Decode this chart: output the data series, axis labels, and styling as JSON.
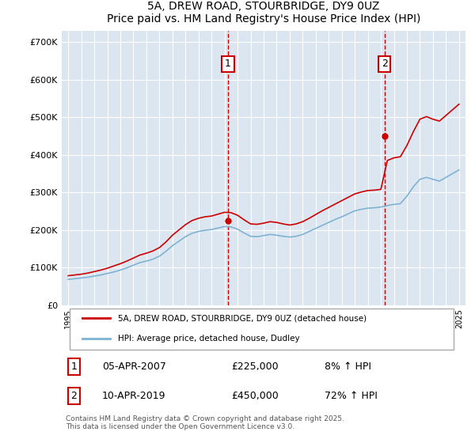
{
  "title": "5A, DREW ROAD, STOURBRIDGE, DY9 0UZ",
  "subtitle": "Price paid vs. HM Land Registry's House Price Index (HPI)",
  "ylabel": "",
  "ylim": [
    0,
    730000
  ],
  "yticks": [
    0,
    100000,
    200000,
    300000,
    400000,
    500000,
    600000,
    700000
  ],
  "ytick_labels": [
    "£0",
    "£100K",
    "£200K",
    "£300K",
    "£400K",
    "£500K",
    "£600K",
    "£700K"
  ],
  "xlim_start": 1994.5,
  "xlim_end": 2025.5,
  "background_color": "#dce6f1",
  "plot_bg_color": "#dce6f1",
  "grid_color": "#ffffff",
  "line1_color": "#cc0000",
  "line2_color": "#7fb3d3",
  "marker_color": "#cc0000",
  "vline_color": "#cc0000",
  "annotation_box_color": "#cc0000",
  "legend_line1": "5A, DREW ROAD, STOURBRIDGE, DY9 0UZ (detached house)",
  "legend_line2": "HPI: Average price, detached house, Dudley",
  "purchase1_date": "05-APR-2007",
  "purchase1_price": "£225,000",
  "purchase1_hpi": "8% ↑ HPI",
  "purchase1_x": 2007.27,
  "purchase1_y": 225000,
  "purchase2_date": "10-APR-2019",
  "purchase2_price": "£450,000",
  "purchase2_hpi": "72% ↑ HPI",
  "purchase2_x": 2019.28,
  "purchase2_y": 450000,
  "footer": "Contains HM Land Registry data © Crown copyright and database right 2025.\nThis data is licensed under the Open Government Licence v3.0.",
  "hpi_line_data_x": [
    1995,
    1995.5,
    1996,
    1996.5,
    1997,
    1997.5,
    1998,
    1998.5,
    1999,
    1999.5,
    2000,
    2000.5,
    2001,
    2001.5,
    2002,
    2002.5,
    2003,
    2003.5,
    2004,
    2004.5,
    2005,
    2005.5,
    2006,
    2006.5,
    2007,
    2007.5,
    2008,
    2008.5,
    2009,
    2009.5,
    2010,
    2010.5,
    2011,
    2011.5,
    2012,
    2012.5,
    2013,
    2013.5,
    2014,
    2014.5,
    2015,
    2015.5,
    2016,
    2016.5,
    2017,
    2017.5,
    2018,
    2018.5,
    2019,
    2019.5,
    2020,
    2020.5,
    2021,
    2021.5,
    2022,
    2022.5,
    2023,
    2023.5,
    2024,
    2024.5,
    2025
  ],
  "hpi_line_data_y": [
    68000,
    70000,
    72000,
    74000,
    77000,
    80000,
    84000,
    88000,
    93000,
    99000,
    106000,
    113000,
    117000,
    122000,
    130000,
    143000,
    158000,
    170000,
    182000,
    191000,
    196000,
    199000,
    201000,
    205000,
    209000,
    208000,
    202000,
    192000,
    183000,
    182000,
    185000,
    188000,
    186000,
    183000,
    181000,
    183000,
    188000,
    196000,
    204000,
    212000,
    220000,
    228000,
    235000,
    243000,
    251000,
    255000,
    258000,
    259000,
    261000,
    265000,
    268000,
    270000,
    290000,
    315000,
    335000,
    340000,
    335000,
    330000,
    340000,
    350000,
    360000
  ],
  "price_line_data_x": [
    1995,
    1995.5,
    1996,
    1996.5,
    1997,
    1997.5,
    1998,
    1998.5,
    1999,
    1999.5,
    2000,
    2000.5,
    2001,
    2001.5,
    2002,
    2002.5,
    2003,
    2003.5,
    2004,
    2004.5,
    2005,
    2005.5,
    2006,
    2006.5,
    2007,
    2007.5,
    2008,
    2008.5,
    2009,
    2009.5,
    2010,
    2010.5,
    2011,
    2011.5,
    2012,
    2012.5,
    2013,
    2013.5,
    2014,
    2014.5,
    2015,
    2015.5,
    2016,
    2016.5,
    2017,
    2017.5,
    2018,
    2018.5,
    2019,
    2019.5,
    2020,
    2020.5,
    2021,
    2021.5,
    2022,
    2022.5,
    2023,
    2023.5,
    2024,
    2024.5,
    2025
  ],
  "price_line_data_y": [
    78000,
    80000,
    82000,
    85000,
    89000,
    93000,
    98000,
    104000,
    110000,
    117000,
    125000,
    133000,
    138000,
    144000,
    153000,
    168000,
    186000,
    200000,
    214000,
    225000,
    231000,
    235000,
    237000,
    242000,
    247000,
    246000,
    239000,
    227000,
    216000,
    215000,
    218000,
    222000,
    220000,
    216000,
    213000,
    216000,
    222000,
    231000,
    241000,
    251000,
    260000,
    269000,
    278000,
    287000,
    296000,
    301000,
    305000,
    306000,
    308000,
    385000,
    392000,
    395000,
    425000,
    462000,
    495000,
    502000,
    495000,
    490000,
    505000,
    520000,
    535000
  ],
  "xticks": [
    1995,
    1996,
    1997,
    1998,
    1999,
    2000,
    2001,
    2002,
    2003,
    2004,
    2005,
    2006,
    2007,
    2008,
    2009,
    2010,
    2011,
    2012,
    2013,
    2014,
    2015,
    2016,
    2017,
    2018,
    2019,
    2020,
    2021,
    2022,
    2023,
    2024,
    2025
  ]
}
